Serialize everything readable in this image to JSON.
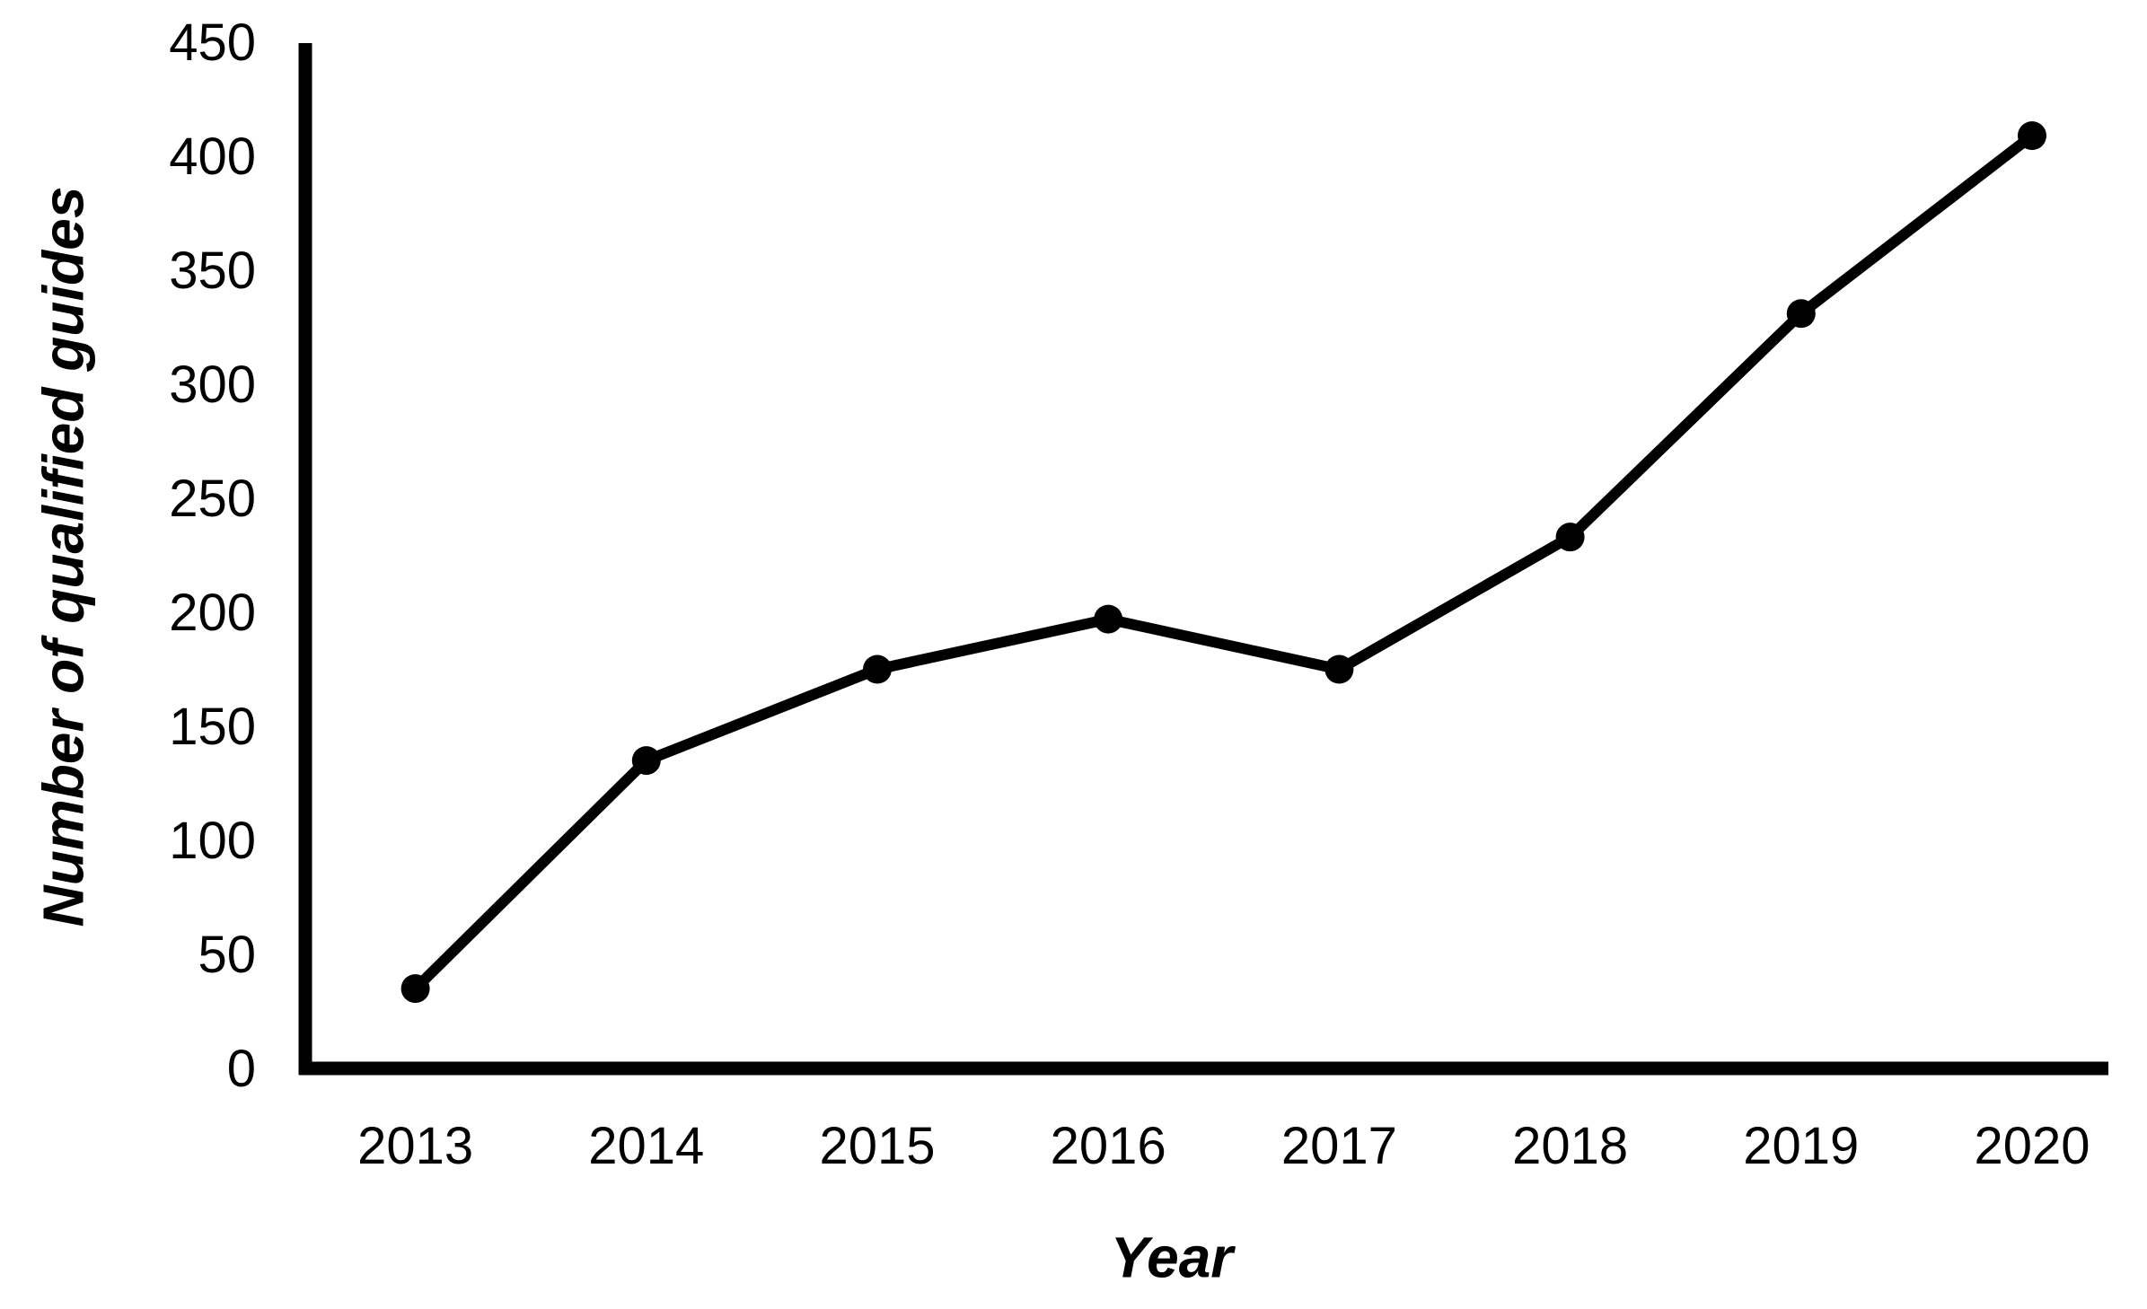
{
  "figure": {
    "background_color": "#ffffff",
    "line_color": "#000000",
    "marker_color": "#000000",
    "axis_color": "#000000",
    "text_color": "#000000"
  },
  "chart_data": {
    "type": "line",
    "title": "",
    "xlabel": "Year",
    "ylabel": "Number of qualified guides",
    "categories": [
      "2013",
      "2014",
      "2015",
      "2016",
      "2017",
      "2018",
      "2019",
      "2020"
    ],
    "series": [
      {
        "name": "Number of qualified guides",
        "values": [
          35,
          135,
          175,
          197,
          175,
          233,
          331,
          409
        ]
      }
    ],
    "yticks": [
      0,
      50,
      100,
      150,
      200,
      250,
      300,
      350,
      400,
      450
    ],
    "ylim": [
      0,
      450
    ],
    "grid": false,
    "legend": "none",
    "marker": "circle"
  }
}
